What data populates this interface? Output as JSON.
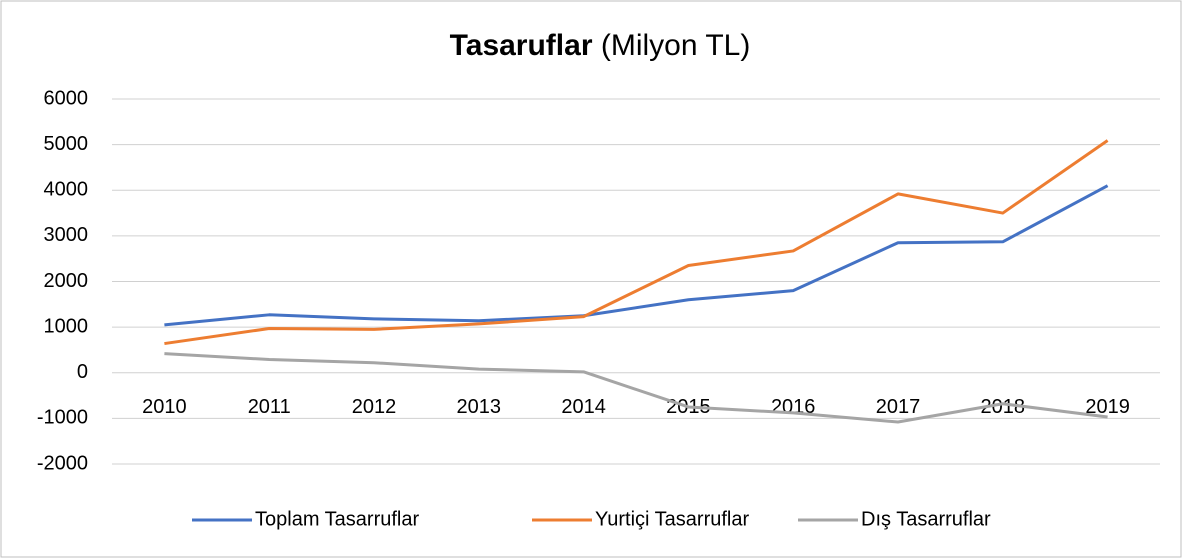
{
  "chart_data": {
    "type": "line",
    "title": "Tasaruflar",
    "subtitle": "(Milyon TL)",
    "categories": [
      "2010",
      "2011",
      "2012",
      "2013",
      "2014",
      "2015",
      "2016",
      "2017",
      "2018",
      "2019"
    ],
    "series": [
      {
        "name": "Toplam Tasarruflar",
        "color": "#4472c4",
        "values": [
          1050,
          1270,
          1180,
          1140,
          1250,
          1600,
          1800,
          2850,
          2870,
          4100
        ]
      },
      {
        "name": "Yurtiçi Tasarruflar",
        "color": "#ed7d31",
        "values": [
          640,
          970,
          950,
          1070,
          1230,
          2350,
          2670,
          3920,
          3500,
          5090
        ]
      },
      {
        "name": "Dış Tasarruflar",
        "color": "#a5a5a5",
        "values": [
          420,
          290,
          220,
          80,
          20,
          -750,
          -880,
          -1080,
          -680,
          -970
        ]
      }
    ],
    "ylim": [
      -2000,
      6000
    ],
    "yticks": [
      -2000,
      -1000,
      0,
      1000,
      2000,
      3000,
      4000,
      5000,
      6000
    ],
    "grid": true,
    "legend": "bottom"
  }
}
